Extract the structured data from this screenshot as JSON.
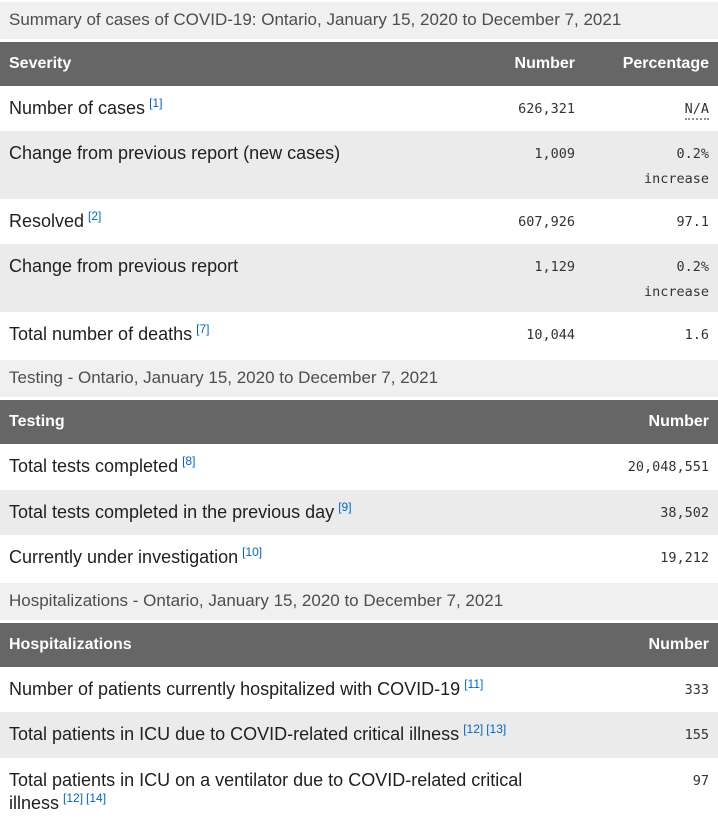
{
  "colors": {
    "table_header_bg": "#666666",
    "table_header_text": "#ffffff",
    "row_stripe": "#ebebeb",
    "caption_bg": "#f0f0f0",
    "footnote_link": "#0066cc"
  },
  "tables": [
    {
      "caption": "Summary of cases of COVID-19: Ontario, January 15, 2020 to December 7, 2021",
      "headers": {
        "col1": "Severity",
        "col2": "Number",
        "col3": "Percentage"
      },
      "rows": [
        {
          "label": "Number of cases",
          "footnotes": [
            "[1]"
          ],
          "number": "626,321",
          "percentage": "N/A"
        },
        {
          "label": "Change from previous report (new cases)",
          "number": "1,009",
          "percentage": "0.2%",
          "percentage_qualifier": "increase"
        },
        {
          "label": "Resolved",
          "footnotes": [
            "[2]"
          ],
          "number": "607,926",
          "percentage": "97.1"
        },
        {
          "label": "Change from previous report",
          "number": "1,129",
          "percentage": "0.2%",
          "percentage_qualifier": "increase"
        },
        {
          "label": "Total number of deaths",
          "footnotes": [
            "[7]"
          ],
          "number": "10,044",
          "percentage": "1.6"
        }
      ]
    },
    {
      "caption": "Testing - Ontario, January 15, 2020 to December 7, 2021",
      "headers": {
        "col1": "Testing",
        "col2": "Number"
      },
      "rows": [
        {
          "label": "Total tests completed",
          "footnotes": [
            "[8]"
          ],
          "number": "20,048,551"
        },
        {
          "label": "Total tests completed in the previous day",
          "footnotes": [
            "[9]"
          ],
          "number": "38,502"
        },
        {
          "label": "Currently under investigation",
          "footnotes": [
            "[10]"
          ],
          "number": "19,212"
        }
      ]
    },
    {
      "caption": "Hospitalizations - Ontario, January 15, 2020 to December 7, 2021",
      "headers": {
        "col1": "Hospitalizations",
        "col2": "Number"
      },
      "rows": [
        {
          "label": "Number of patients currently hospitalized with COVID-19",
          "footnotes": [
            "[11]"
          ],
          "number": "333"
        },
        {
          "label": "Total patients in ICU due to COVID-related critical illness",
          "footnotes": [
            "[12]",
            "[13]"
          ],
          "number": "155"
        },
        {
          "label": "Total patients in ICU on a ventilator due to COVID-related critical illness",
          "footnotes": [
            "[12]",
            "[14]"
          ],
          "number": "97"
        }
      ]
    }
  ]
}
